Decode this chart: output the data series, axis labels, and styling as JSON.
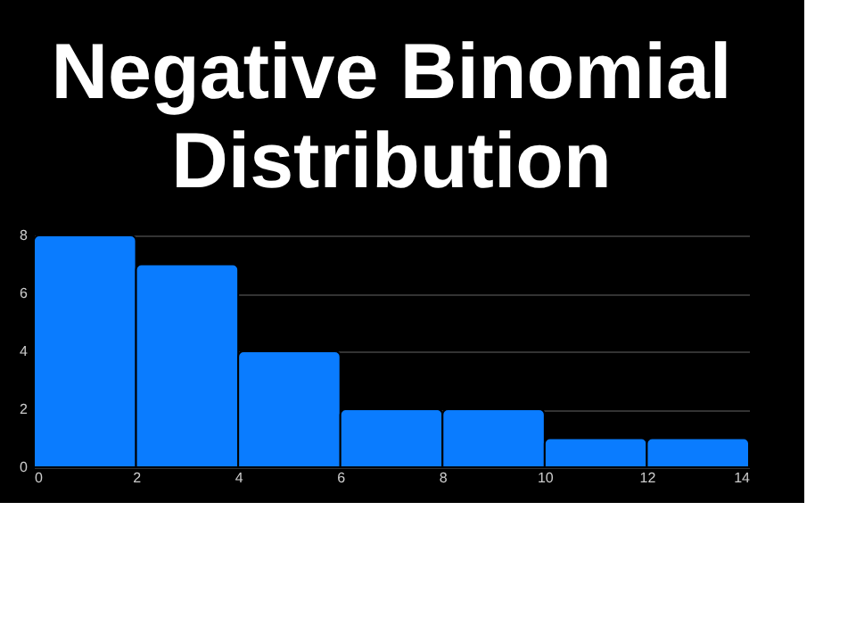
{
  "chart_data": {
    "type": "histogram",
    "title": "Negative Binomial Distribution",
    "bins": [
      0,
      2,
      4,
      6,
      8,
      10,
      12,
      14
    ],
    "values": [
      8,
      7,
      4,
      2,
      2,
      1,
      1
    ],
    "color": "#0a7cff",
    "xlim": [
      0,
      14
    ],
    "xticks": [
      0,
      2,
      4,
      6,
      8,
      10,
      12,
      14
    ],
    "ylim": [
      0,
      8
    ],
    "yticks": [
      0,
      2,
      4,
      6,
      8
    ],
    "grid": "y"
  }
}
